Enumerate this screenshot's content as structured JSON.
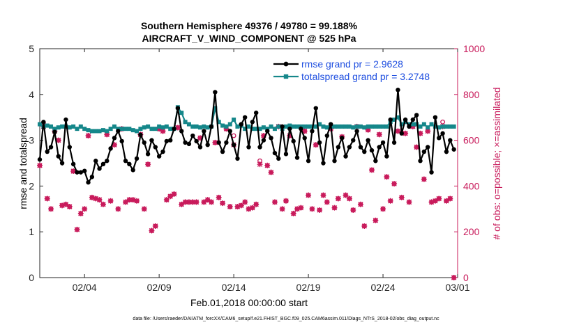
{
  "chart_data": {
    "type": "line",
    "title_line1": "Southern Hemisphere 49376 / 49780 = 99.188%",
    "title_line2": "AIRCRAFT_V_WIND_COMPONENT @ 525 hPa",
    "xlabel": "Feb.01,2018 00:00:00 start",
    "ylabel_left": "rmse and totalspread",
    "ylabel_right": "# of obs: o=possible; ×=assimilated",
    "footnote": "data file: /Users/raeder/DAI/ATM_forcXX/CAM6_setup/f.e21.FHIST_BGC.f09_025.CAM6assim.011/Diags_NTrS_2018-02/obs_diag_output.nc",
    "xlim": [
      0.5,
      28.5
    ],
    "ylim_left": [
      0,
      5
    ],
    "ylim_right": [
      0,
      1000
    ],
    "x_ticks": [
      {
        "value": 3.5,
        "label": "02/04"
      },
      {
        "value": 8.5,
        "label": "02/09"
      },
      {
        "value": 13.5,
        "label": "02/14"
      },
      {
        "value": 18.5,
        "label": "02/19"
      },
      {
        "value": 23.5,
        "label": "02/24"
      },
      {
        "value": 28.5,
        "label": "03/01"
      }
    ],
    "y_ticks_left": [
      "0",
      "1",
      "2",
      "3",
      "4",
      "5"
    ],
    "y_ticks_right": [
      "0",
      "200",
      "400",
      "600",
      "800",
      "1000"
    ],
    "x_start": 0.5,
    "x_step": 0.25,
    "colors": {
      "rmse": "#000000",
      "spread": "#15878a",
      "obs": "#c8195a",
      "right_axis": "#c8195a"
    },
    "series": [
      {
        "name": "rmse",
        "legend": "rmse grand pr = 2.9628",
        "values": [
          2.58,
          3.4,
          2.75,
          2.85,
          3.18,
          2.65,
          2.5,
          3.45,
          2.85,
          2.48,
          2.3,
          2.3,
          2.33,
          2.08,
          2.2,
          2.55,
          2.38,
          2.48,
          2.55,
          2.82,
          3.05,
          3.2,
          2.98,
          2.55,
          2.48,
          2.35,
          2.6,
          3.12,
          2.95,
          2.7,
          3.0,
          2.85,
          2.65,
          2.75,
          2.98,
          3.0,
          3.25,
          3.7,
          3.2,
          2.95,
          2.92,
          3.1,
          2.98,
          2.85,
          3.2,
          2.9,
          3.3,
          4.05,
          2.95,
          2.75,
          2.95,
          3.2,
          2.9,
          2.6,
          3.35,
          3.5,
          2.85,
          3.4,
          3.6,
          2.85,
          3.0,
          3.2,
          3.05,
          2.72,
          2.6,
          3.3,
          2.7,
          3.25,
          2.98,
          2.62,
          3.25,
          3.05,
          2.55,
          3.2,
          3.7,
          2.95,
          2.5,
          3.1,
          3.35,
          2.55,
          2.85,
          3.05,
          2.65,
          2.85,
          3.0,
          3.2,
          2.85,
          2.75,
          3.0,
          2.78,
          2.55,
          2.85,
          2.95,
          2.65,
          3.45,
          2.95,
          4.1,
          3.15,
          3.45,
          3.3,
          3.45,
          3.55,
          2.55,
          2.75,
          2.85,
          2.3,
          3.5,
          3.05,
          3.15,
          2.75,
          3.0,
          2.8
        ]
      },
      {
        "name": "totalspread",
        "legend": "totalspread grand pr = 3.2748",
        "values": [
          3.35,
          3.3,
          3.32,
          3.3,
          3.25,
          3.28,
          3.3,
          3.3,
          3.28,
          3.3,
          3.25,
          3.3,
          3.25,
          3.22,
          3.2,
          3.2,
          3.2,
          3.22,
          3.2,
          3.25,
          3.3,
          3.25,
          3.25,
          3.25,
          3.25,
          3.22,
          3.2,
          3.25,
          3.28,
          3.3,
          3.25,
          3.25,
          3.3,
          3.28,
          3.3,
          3.25,
          3.25,
          3.72,
          3.6,
          3.4,
          3.35,
          3.3,
          3.3,
          3.28,
          3.3,
          3.28,
          3.3,
          3.7,
          3.4,
          3.32,
          3.3,
          3.35,
          3.45,
          3.3,
          3.32,
          3.25,
          3.3,
          3.25,
          3.25,
          3.25,
          3.28,
          3.25,
          3.3,
          3.25,
          3.3,
          3.25,
          3.3,
          3.32,
          3.3,
          3.3,
          3.3,
          3.3,
          3.3,
          3.3,
          3.3,
          3.35,
          3.3,
          3.28,
          3.3,
          3.3,
          3.3,
          3.3,
          3.3,
          3.3,
          3.28,
          3.3,
          3.3,
          3.28,
          3.3,
          3.3,
          3.3,
          3.3,
          3.3,
          3.3,
          3.4,
          3.45,
          3.5,
          3.35,
          3.4,
          3.35,
          3.35,
          3.35,
          3.3,
          3.35,
          3.28,
          3.35,
          3.3,
          3.28,
          3.3,
          3.3,
          3.3,
          3.3
        ]
      },
      {
        "name": "possible",
        "marker": "o",
        "values": [
          490,
          675,
          345,
          300,
          640,
          600,
          315,
          320,
          310,
          465,
          210,
          280,
          300,
          620,
          350,
          345,
          340,
          320,
          625,
          335,
          580,
          300,
          650,
          330,
          340,
          340,
          335,
          625,
          300,
          495,
          205,
          225,
          650,
          640,
          340,
          355,
          365,
          655,
          320,
          330,
          330,
          330,
          330,
          610,
          330,
          340,
          330,
          590,
          350,
          325,
          650,
          310,
          620,
          310,
          315,
          330,
          300,
          305,
          320,
          510,
          620,
          490,
          460,
          330,
          660,
          300,
          335,
          620,
          280,
          300,
          305,
          640,
          360,
          300,
          580,
          295,
          360,
          330,
          650,
          305,
          345,
          615,
          360,
          345,
          295,
          660,
          320,
          225,
          645,
          470,
          250,
          625,
          300,
          440,
          335,
          410,
          640,
          350,
          630,
          330,
          660,
          570,
          630,
          430,
          640,
          330,
          335,
          345,
          680,
          335,
          345,
          0
        ]
      },
      {
        "name": "assimilated",
        "marker": "x",
        "values": [
          490,
          660,
          345,
          300,
          640,
          600,
          315,
          320,
          310,
          465,
          210,
          280,
          300,
          620,
          350,
          345,
          340,
          320,
          625,
          335,
          580,
          300,
          650,
          330,
          340,
          340,
          335,
          625,
          300,
          495,
          205,
          225,
          650,
          640,
          340,
          355,
          365,
          655,
          320,
          330,
          330,
          330,
          330,
          610,
          330,
          340,
          330,
          590,
          350,
          325,
          650,
          310,
          580,
          310,
          315,
          330,
          300,
          305,
          320,
          495,
          620,
          490,
          460,
          330,
          660,
          300,
          335,
          620,
          280,
          300,
          305,
          640,
          360,
          300,
          580,
          295,
          360,
          330,
          650,
          305,
          345,
          615,
          360,
          345,
          295,
          660,
          320,
          225,
          645,
          470,
          250,
          625,
          300,
          440,
          335,
          410,
          640,
          350,
          630,
          330,
          660,
          570,
          630,
          430,
          640,
          330,
          335,
          345,
          660,
          335,
          345,
          0
        ]
      }
    ]
  }
}
